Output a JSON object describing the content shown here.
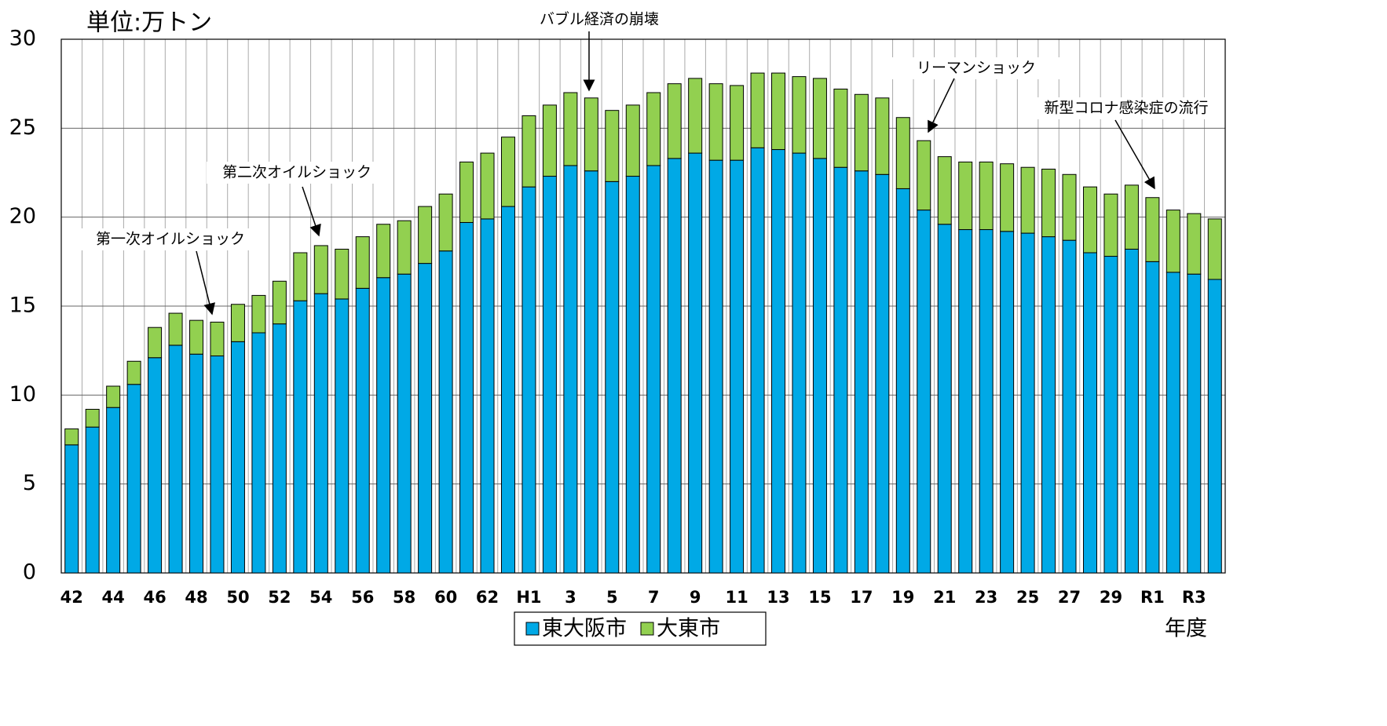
{
  "chart_data": {
    "type": "bar",
    "stacked": true,
    "title": "単位:万トン",
    "x_label": "年度",
    "categories": [
      "42",
      null,
      "44",
      null,
      "46",
      null,
      "48",
      null,
      "50",
      null,
      "52",
      null,
      "54",
      null,
      "56",
      null,
      "58",
      null,
      "60",
      null,
      "62",
      null,
      "H1",
      null,
      "3",
      null,
      "5",
      null,
      "7",
      null,
      "9",
      null,
      "11",
      null,
      "13",
      null,
      "15",
      null,
      "17",
      null,
      "19",
      null,
      "21",
      null,
      "23",
      null,
      "25",
      null,
      "27",
      null,
      "29",
      null,
      "R1",
      null,
      "R3",
      null
    ],
    "series": [
      {
        "name": "東大阪市",
        "color": "#00a9e6",
        "values": [
          7.2,
          8.2,
          9.3,
          10.6,
          12.1,
          12.8,
          12.3,
          12.2,
          13.0,
          13.5,
          14.0,
          15.3,
          15.7,
          15.4,
          16.0,
          16.6,
          16.8,
          17.4,
          18.1,
          19.7,
          19.9,
          20.6,
          21.7,
          22.3,
          22.9,
          22.6,
          22.0,
          22.3,
          22.9,
          23.3,
          23.6,
          23.2,
          23.2,
          23.9,
          23.8,
          23.6,
          23.3,
          22.8,
          22.6,
          22.4,
          21.6,
          20.4,
          19.6,
          19.3,
          19.3,
          19.2,
          19.1,
          18.9,
          18.7,
          18.0,
          17.8,
          18.2,
          17.5,
          16.9,
          16.8,
          16.5
        ]
      },
      {
        "name": "大東市",
        "color": "#92d050",
        "values": [
          0.9,
          1.0,
          1.2,
          1.3,
          1.7,
          1.8,
          1.9,
          1.9,
          2.1,
          2.1,
          2.4,
          2.7,
          2.7,
          2.8,
          2.9,
          3.0,
          3.0,
          3.2,
          3.2,
          3.4,
          3.7,
          3.9,
          4.0,
          4.0,
          4.1,
          4.1,
          4.0,
          4.0,
          4.1,
          4.2,
          4.2,
          4.3,
          4.2,
          4.2,
          4.3,
          4.3,
          4.5,
          4.4,
          4.3,
          4.3,
          4.0,
          3.9,
          3.8,
          3.8,
          3.8,
          3.8,
          3.7,
          3.8,
          3.7,
          3.7,
          3.5,
          3.6,
          3.6,
          3.5,
          3.4,
          3.4
        ]
      }
    ],
    "ylim": [
      0,
      30
    ],
    "yticks": [
      0,
      5,
      10,
      15,
      20,
      25,
      30
    ],
    "grid": true,
    "annotations": [
      "第一次オイルショック",
      "第二次オイルショック",
      "バブル経済の崩壊",
      "リーマンショック",
      "新型コロナ感染症の流行"
    ]
  }
}
